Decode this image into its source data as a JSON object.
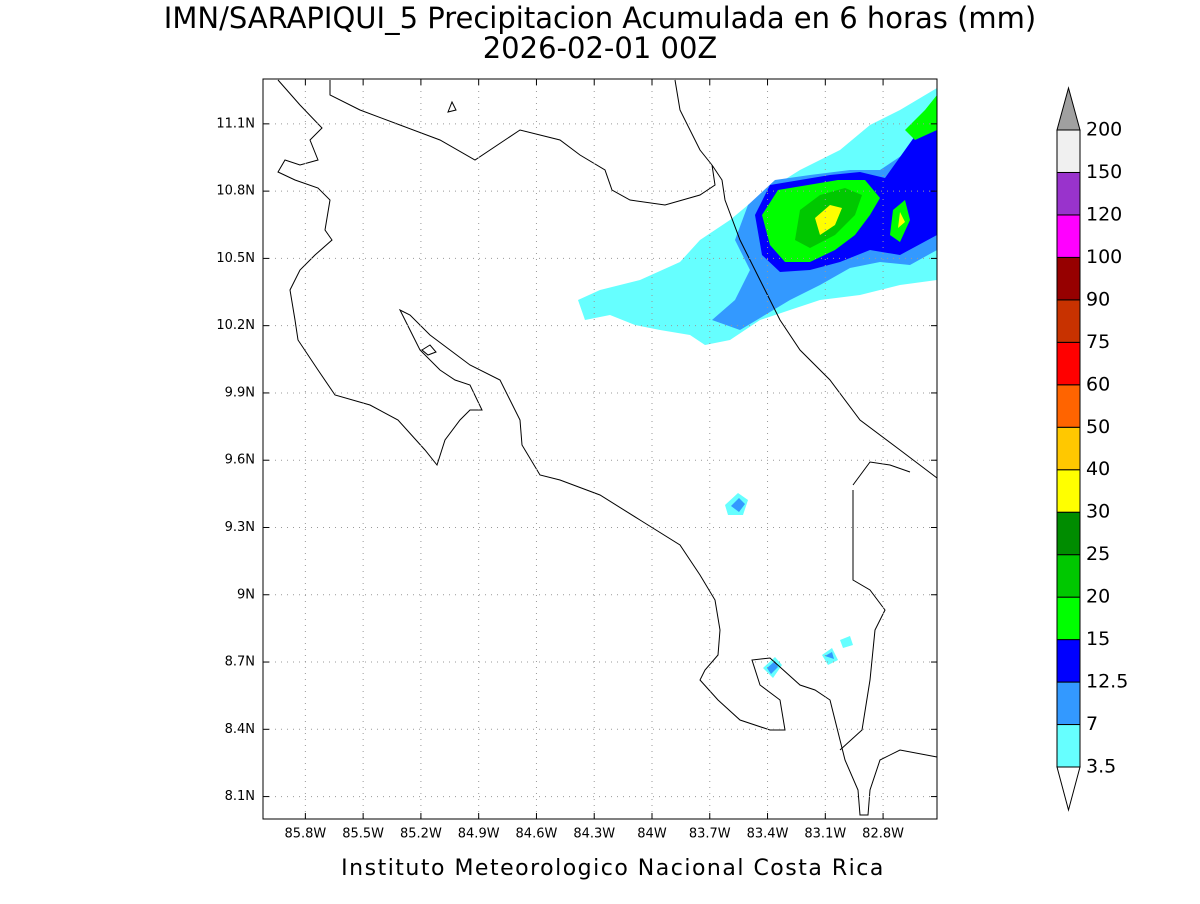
{
  "title": "IMN/SARAPIQUI_5 Precipitacion Acumulada en 6 horas (mm)",
  "subtitle": "2026-02-01 00Z",
  "footer": "Instituto Meteorologico Nacional Costa Rica",
  "map": {
    "xlim": [
      -86.02,
      -82.52
    ],
    "ylim": [
      8.0,
      11.3
    ],
    "xticks": [
      {
        "value": -85.8,
        "label": "85.8W"
      },
      {
        "value": -85.5,
        "label": "85.5W"
      },
      {
        "value": -85.2,
        "label": "85.2W"
      },
      {
        "value": -84.9,
        "label": "84.9W"
      },
      {
        "value": -84.6,
        "label": "84.6W"
      },
      {
        "value": -84.3,
        "label": "84.3W"
      },
      {
        "value": -84.0,
        "label": "84W"
      },
      {
        "value": -83.7,
        "label": "83.7W"
      },
      {
        "value": -83.4,
        "label": "83.4W"
      },
      {
        "value": -83.1,
        "label": "83.1W"
      },
      {
        "value": -82.8,
        "label": "82.8W"
      }
    ],
    "yticks": [
      {
        "value": 8.1,
        "label": "8.1N"
      },
      {
        "value": 8.4,
        "label": "8.4N"
      },
      {
        "value": 8.7,
        "label": "8.7N"
      },
      {
        "value": 9.0,
        "label": "9N"
      },
      {
        "value": 9.3,
        "label": "9.3N"
      },
      {
        "value": 9.6,
        "label": "9.6N"
      },
      {
        "value": 9.9,
        "label": "9.9N"
      },
      {
        "value": 10.2,
        "label": "10.2N"
      },
      {
        "value": 10.5,
        "label": "10.5N"
      },
      {
        "value": 10.8,
        "label": "10.8N"
      },
      {
        "value": 11.1,
        "label": "11.1N"
      }
    ]
  },
  "colorbar": {
    "levels": [
      3.5,
      7,
      12.5,
      15,
      20,
      25,
      30,
      40,
      50,
      60,
      75,
      90,
      100,
      120,
      150,
      200
    ],
    "colors": [
      "#ffffff",
      "#66ffff",
      "#3399ff",
      "#0000ff",
      "#00ff00",
      "#00c800",
      "#008c00",
      "#ffff00",
      "#ffc800",
      "#ff6400",
      "#ff0000",
      "#c83200",
      "#960000",
      "#ff00ff",
      "#9933cc",
      "#f0f0f0",
      "#a0a0a0"
    ]
  }
}
